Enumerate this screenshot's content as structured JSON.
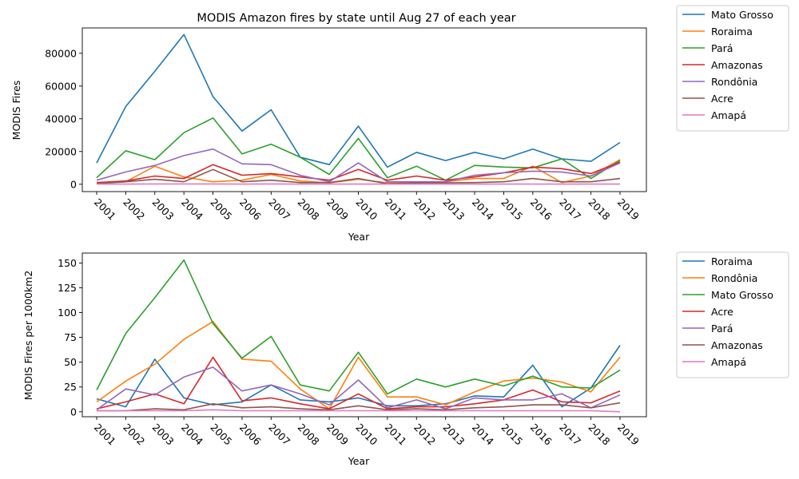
{
  "chart_data": [
    {
      "type": "line",
      "title": "MODIS Amazon fires by state until Aug 27 of each year",
      "xlabel": "Year",
      "ylabel": "MODIS Fires",
      "x": [
        "2001",
        "2002",
        "2003",
        "2004",
        "2005",
        "2006",
        "2007",
        "2008",
        "2009",
        "2010",
        "2011",
        "2012",
        "2013",
        "2014",
        "2015",
        "2016",
        "2017",
        "2018",
        "2019"
      ],
      "ylim": [
        -4500,
        95500
      ],
      "yticks": [
        0,
        20000,
        40000,
        60000,
        80000
      ],
      "legend_position": "right-outside",
      "series": [
        {
          "name": "Mato Grosso",
          "color": "#1f77b4",
          "values": [
            13000,
            47500,
            69000,
            91500,
            53500,
            32500,
            45500,
            16500,
            12000,
            35500,
            10500,
            19500,
            14500,
            19500,
            15500,
            21500,
            15500,
            14000,
            25500
          ]
        },
        {
          "name": "Roraima",
          "color": "#ff7f0e",
          "values": [
            1000,
            1500,
            11000,
            4500,
            1500,
            2500,
            6000,
            2000,
            800,
            3000,
            800,
            800,
            1500,
            3500,
            3500,
            11000,
            1000,
            5000,
            15000
          ]
        },
        {
          "name": "Pará",
          "color": "#2ca02c",
          "values": [
            4000,
            20500,
            15000,
            31500,
            40500,
            18500,
            24500,
            16500,
            6000,
            28000,
            4000,
            11000,
            2500,
            11500,
            10500,
            10000,
            15500,
            3500,
            14500
          ]
        },
        {
          "name": "Amazonas",
          "color": "#d62728",
          "values": [
            1000,
            2000,
            5000,
            3500,
            12000,
            5500,
            6500,
            4500,
            2500,
            9000,
            2500,
            5000,
            2500,
            4500,
            7000,
            10500,
            9500,
            6500,
            13500
          ]
        },
        {
          "name": "Rondônia",
          "color": "#9467bd",
          "values": [
            2500,
            7500,
            11500,
            17500,
            21500,
            12500,
            12000,
            5500,
            1500,
            13000,
            1500,
            1500,
            1500,
            5500,
            7000,
            8000,
            7500,
            5000,
            13000
          ]
        },
        {
          "name": "Acre",
          "color": "#8c564b",
          "values": [
            500,
            1500,
            3000,
            1500,
            9000,
            1500,
            2500,
            1000,
            1000,
            3500,
            300,
            800,
            800,
            1000,
            1500,
            3500,
            1500,
            1500,
            3500
          ]
        },
        {
          "name": "Amapá",
          "color": "#e377c2",
          "values": [
            100,
            100,
            200,
            200,
            200,
            100,
            200,
            100,
            100,
            100,
            100,
            100,
            100,
            100,
            100,
            100,
            100,
            100,
            100
          ]
        }
      ]
    },
    {
      "type": "line",
      "title": "",
      "xlabel": "Year",
      "ylabel": "MODIS Fires per 1000km2",
      "x": [
        "2001",
        "2002",
        "2003",
        "2004",
        "2005",
        "2006",
        "2007",
        "2008",
        "2009",
        "2010",
        "2011",
        "2012",
        "2013",
        "2014",
        "2015",
        "2016",
        "2017",
        "2018",
        "2019"
      ],
      "ylim": [
        -5,
        160
      ],
      "yticks": [
        0,
        25,
        50,
        75,
        100,
        125,
        150
      ],
      "legend_position": "right-outside",
      "series": [
        {
          "name": "Roraima",
          "color": "#1f77b4",
          "values": [
            13,
            5,
            53,
            14,
            7,
            10,
            27,
            12,
            10,
            14,
            6,
            6,
            8,
            16,
            15,
            47,
            5,
            24,
            67
          ]
        },
        {
          "name": "Rondônia",
          "color": "#ff7f0e",
          "values": [
            10,
            31,
            48,
            73,
            91,
            53,
            51,
            23,
            3,
            55,
            15,
            15,
            7,
            20,
            31,
            34,
            30,
            20,
            55
          ]
        },
        {
          "name": "Mato Grosso",
          "color": "#2ca02c",
          "values": [
            22,
            79,
            115,
            153,
            89,
            54,
            76,
            27,
            21,
            60,
            18,
            33,
            25,
            33,
            26,
            36,
            25,
            24,
            42
          ]
        },
        {
          "name": "Acre",
          "color": "#d62728",
          "values": [
            3,
            10,
            18,
            8,
            55,
            11,
            14,
            8,
            3,
            18,
            3,
            5,
            5,
            8,
            12,
            22,
            10,
            9,
            21
          ]
        },
        {
          "name": "Pará",
          "color": "#9467bd",
          "values": [
            2,
            23,
            17,
            35,
            45,
            21,
            27,
            18,
            7,
            32,
            4,
            12,
            3,
            14,
            12,
            12,
            18,
            4,
            17
          ]
        },
        {
          "name": "Amazonas",
          "color": "#8c564b",
          "values": [
            1,
            1,
            3,
            2,
            8,
            4,
            5,
            3,
            2,
            6,
            2,
            3,
            2,
            4,
            5,
            7,
            7,
            4,
            9
          ]
        },
        {
          "name": "Amapá",
          "color": "#e377c2",
          "values": [
            1,
            1,
            1,
            1,
            2,
            1,
            1,
            1,
            1,
            1,
            1,
            1,
            1,
            1,
            1,
            1,
            1,
            1,
            0
          ]
        }
      ]
    }
  ]
}
